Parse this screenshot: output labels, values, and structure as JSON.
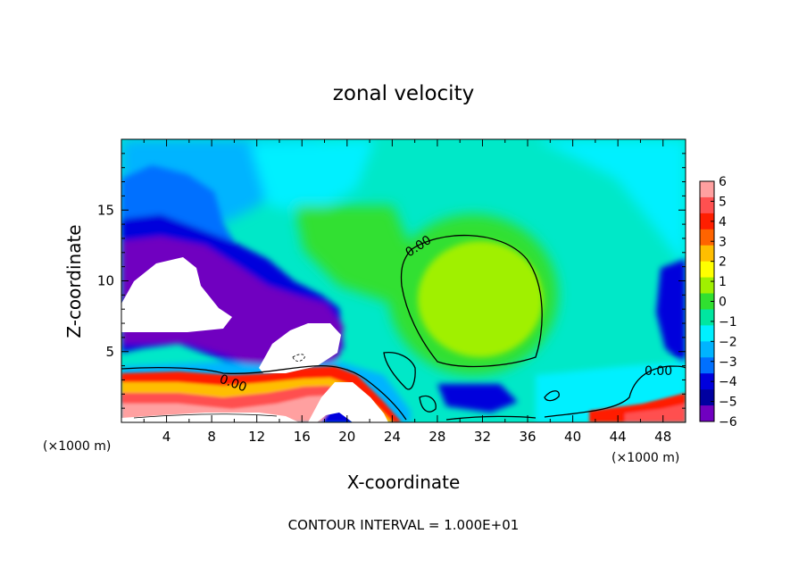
{
  "chart_data": {
    "type": "heatmap",
    "title": "zonal velocity",
    "xlabel": "X-coordinate",
    "ylabel": "Z-coordinate",
    "x_unit_note": "(×1000 m)",
    "xlim": [
      0,
      50
    ],
    "ylim": [
      0,
      20
    ],
    "x_ticks": [
      4,
      8,
      12,
      16,
      20,
      24,
      28,
      32,
      36,
      40,
      44,
      48
    ],
    "y_ticks": [
      5,
      10,
      15
    ],
    "colorbar": {
      "ticks": [
        6,
        5,
        4,
        3,
        2,
        1,
        0,
        -1,
        -2,
        -3,
        -4,
        -5,
        -6
      ],
      "tick_labels": [
        "6",
        "5",
        "4",
        "3",
        "2",
        "1",
        "0",
        "−1",
        "−2",
        "−3",
        "−4",
        "−5",
        "−6"
      ],
      "colors": [
        "#ffa0a0",
        "#ff5050",
        "#ff1e00",
        "#ff6400",
        "#ffbe00",
        "#ffff00",
        "#a0f000",
        "#30e030",
        "#00e6a0",
        "#00f0ff",
        "#00b4ff",
        "#0070ff",
        "#0000dc",
        "#0000a0",
        "#7000c0"
      ]
    },
    "contour_label": "0.00",
    "contour_interval_text": "CONTOUR INTERVAL = 1.000E+01",
    "grid": false
  }
}
